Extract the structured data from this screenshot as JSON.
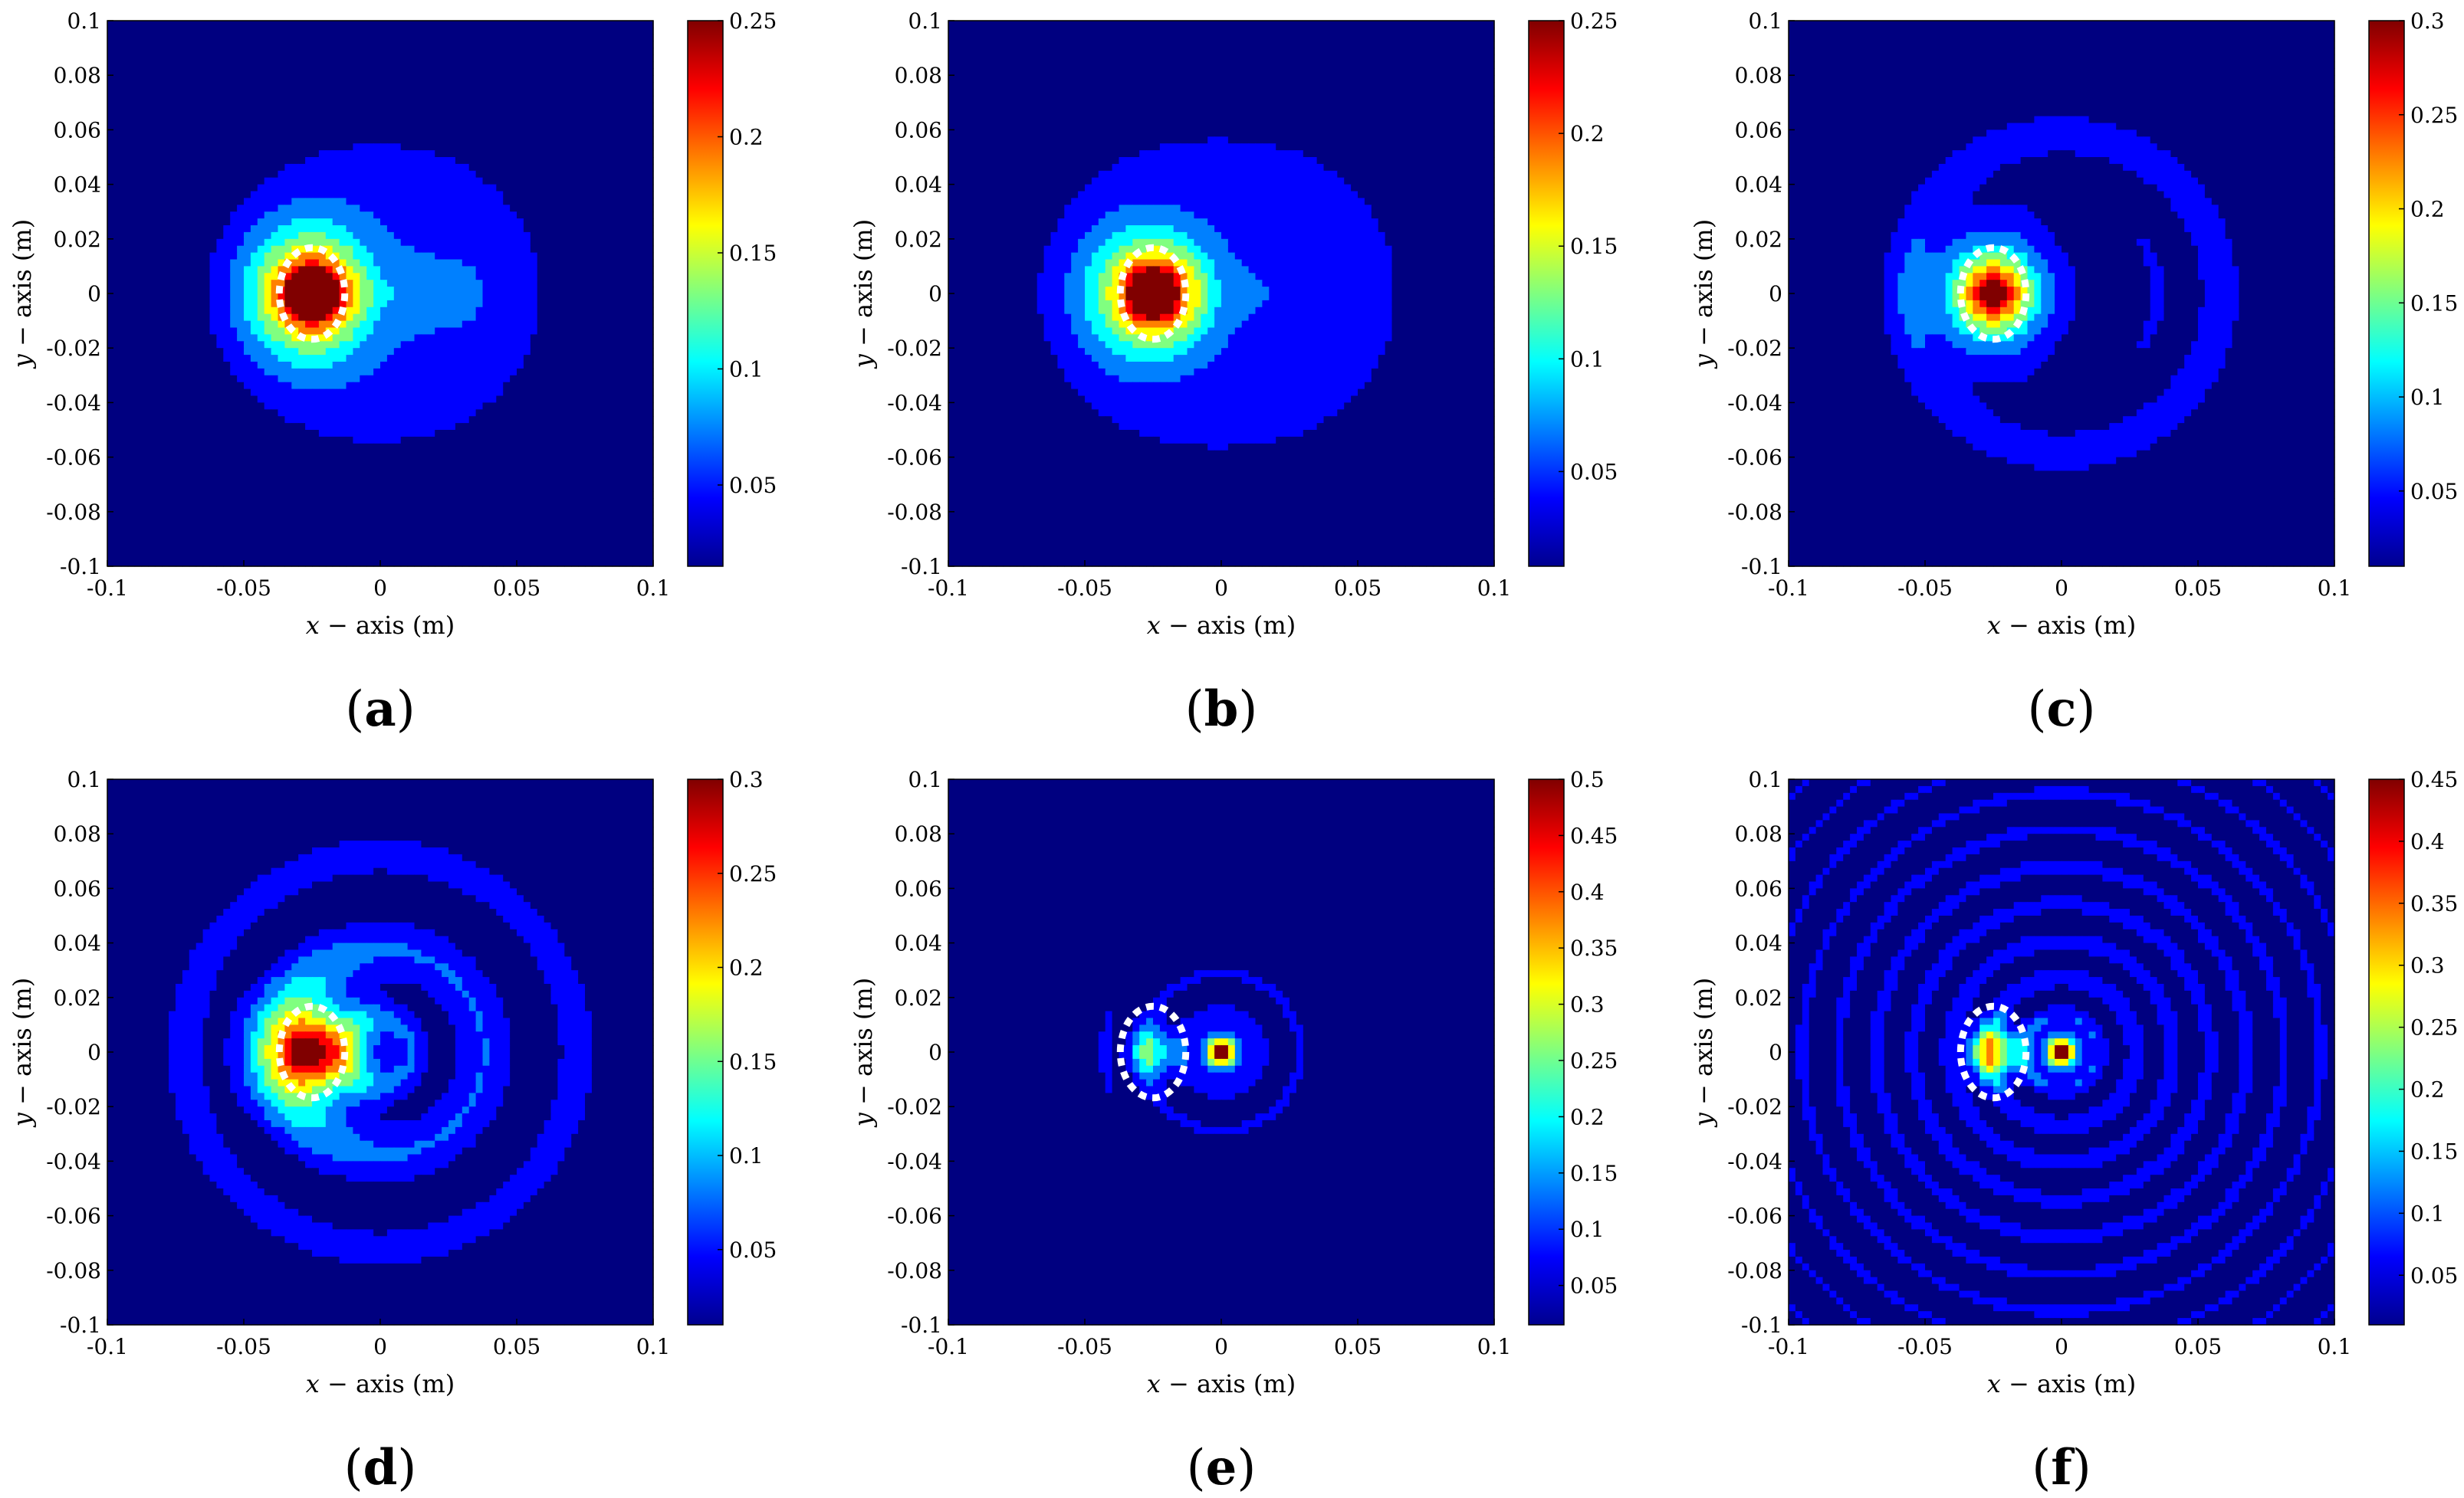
{
  "figure_colors": {
    "background": "#00008f",
    "low_ring": "#0040ff",
    "ring_outline": "#ffffff",
    "marker": "#ffffff"
  },
  "colormap": "jet",
  "chart_data": [
    {
      "id": "a",
      "type": "heatmap",
      "caption_letter": "a",
      "caption": "(a)",
      "xlabel_var": "x",
      "xlabel_rest": " − axis (m)",
      "ylabel_var": "y",
      "ylabel_rest": " − axis (m)",
      "xlim": [
        -0.1,
        0.1
      ],
      "ylim": [
        -0.1,
        0.1
      ],
      "xticks": [
        -0.1,
        -0.05,
        0,
        0.05,
        0.1
      ],
      "xtick_labels": [
        "-0.1",
        "-0.05",
        "0",
        "0.05",
        "0.1"
      ],
      "yticks": [
        0.1,
        0.08,
        0.06,
        0.04,
        0.02,
        0,
        -0.02,
        -0.04,
        -0.06,
        -0.08,
        -0.1
      ],
      "ytick_labels": [
        "0.1",
        "0.08",
        "0.06",
        "0.04",
        "0.02",
        "0",
        "-0.02",
        "-0.04",
        "-0.06",
        "-0.08",
        "-0.1"
      ],
      "clim": [
        0.015,
        0.25
      ],
      "cbar_ticks": [
        0.05,
        0.1,
        0.15,
        0.2,
        0.25
      ],
      "cbar_tick_labels": [
        "0.05",
        "0.1",
        "0.15",
        "0.2",
        "0.25"
      ],
      "source": [
        -0.025,
        0
      ],
      "source_radius": 0.012,
      "pattern": "plume-small"
    },
    {
      "id": "b",
      "type": "heatmap",
      "caption_letter": "b",
      "caption": "(b)",
      "xlabel_var": "x",
      "xlabel_rest": " − axis (m)",
      "ylabel_var": "y",
      "ylabel_rest": " − axis (m)",
      "xlim": [
        -0.1,
        0.1
      ],
      "ylim": [
        -0.1,
        0.1
      ],
      "xticks": [
        -0.1,
        -0.05,
        0,
        0.05,
        0.1
      ],
      "xtick_labels": [
        "-0.1",
        "-0.05",
        "0",
        "0.05",
        "0.1"
      ],
      "yticks": [
        0.1,
        0.08,
        0.06,
        0.04,
        0.02,
        0,
        -0.02,
        -0.04,
        -0.06,
        -0.08,
        -0.1
      ],
      "ytick_labels": [
        "0.1",
        "0.08",
        "0.06",
        "0.04",
        "0.02",
        "0",
        "-0.02",
        "-0.04",
        "-0.06",
        "-0.08",
        "-0.1"
      ],
      "clim": [
        0.008,
        0.25
      ],
      "cbar_ticks": [
        0.05,
        0.1,
        0.15,
        0.2,
        0.25
      ],
      "cbar_tick_labels": [
        "0.05",
        "0.1",
        "0.15",
        "0.2",
        "0.25"
      ],
      "source": [
        -0.025,
        0
      ],
      "source_radius": 0.012,
      "pattern": "plume-large"
    },
    {
      "id": "c",
      "type": "heatmap",
      "caption_letter": "c",
      "caption": "(c)",
      "xlabel_var": "x",
      "xlabel_rest": " − axis (m)",
      "ylabel_var": "y",
      "ylabel_rest": " − axis (m)",
      "xlim": [
        -0.1,
        0.1
      ],
      "ylim": [
        -0.1,
        0.1
      ],
      "xticks": [
        -0.1,
        -0.05,
        0,
        0.05,
        0.1
      ],
      "xtick_labels": [
        "-0.1",
        "-0.05",
        "0",
        "0.05",
        "0.1"
      ],
      "yticks": [
        0.1,
        0.08,
        0.06,
        0.04,
        0.02,
        0,
        -0.02,
        -0.04,
        -0.06,
        -0.08,
        -0.1
      ],
      "ytick_labels": [
        "0.1",
        "0.08",
        "0.06",
        "0.04",
        "0.02",
        "0",
        "-0.02",
        "-0.04",
        "-0.06",
        "-0.08",
        "-0.1"
      ],
      "clim": [
        0.01,
        0.3
      ],
      "cbar_ticks": [
        0.05,
        0.1,
        0.15,
        0.2,
        0.25,
        0.3
      ],
      "cbar_tick_labels": [
        "0.05",
        "0.1",
        "0.15",
        "0.2",
        "0.25",
        "0.3"
      ],
      "source": [
        -0.025,
        0
      ],
      "source_radius": 0.012,
      "pattern": "spiral-1"
    },
    {
      "id": "d",
      "type": "heatmap",
      "caption_letter": "d",
      "caption": "(d)",
      "xlabel_var": "x",
      "xlabel_rest": " − axis (m)",
      "ylabel_var": "y",
      "ylabel_rest": " − axis (m)",
      "xlim": [
        -0.1,
        0.1
      ],
      "ylim": [
        -0.1,
        0.1
      ],
      "xticks": [
        -0.1,
        -0.05,
        0,
        0.05,
        0.1
      ],
      "xtick_labels": [
        "-0.1",
        "-0.05",
        "0",
        "0.05",
        "0.1"
      ],
      "yticks": [
        0.1,
        0.08,
        0.06,
        0.04,
        0.02,
        0,
        -0.02,
        -0.04,
        -0.06,
        -0.08,
        -0.1
      ],
      "ytick_labels": [
        "0.1",
        "0.08",
        "0.06",
        "0.04",
        "0.02",
        "0",
        "-0.02",
        "-0.04",
        "-0.06",
        "-0.08",
        "-0.1"
      ],
      "clim": [
        0.01,
        0.3
      ],
      "cbar_ticks": [
        0.05,
        0.1,
        0.15,
        0.2,
        0.25,
        0.3
      ],
      "cbar_tick_labels": [
        "0.05",
        "0.1",
        "0.15",
        "0.2",
        "0.25",
        "0.3"
      ],
      "source": [
        -0.025,
        0
      ],
      "source_radius": 0.012,
      "pattern": "spiral-2"
    },
    {
      "id": "e",
      "type": "heatmap",
      "caption_letter": "e",
      "caption": "(e)",
      "xlabel_var": "x",
      "xlabel_rest": " − axis (m)",
      "ylabel_var": "y",
      "ylabel_rest": " − axis (m)",
      "xlim": [
        -0.1,
        0.1
      ],
      "ylim": [
        -0.1,
        0.1
      ],
      "xticks": [
        -0.1,
        -0.05,
        0,
        0.05,
        0.1
      ],
      "xtick_labels": [
        "-0.1",
        "-0.05",
        "0",
        "0.05",
        "0.1"
      ],
      "yticks": [
        0.1,
        0.08,
        0.06,
        0.04,
        0.02,
        0,
        -0.02,
        -0.04,
        -0.06,
        -0.08,
        -0.1
      ],
      "ytick_labels": [
        "0.1",
        "0.08",
        "0.06",
        "0.04",
        "0.02",
        "0",
        "-0.02",
        "-0.04",
        "-0.06",
        "-0.08",
        "-0.1"
      ],
      "clim": [
        0.015,
        0.5
      ],
      "cbar_ticks": [
        0.05,
        0.1,
        0.15,
        0.2,
        0.25,
        0.3,
        0.35,
        0.4,
        0.45,
        0.5
      ],
      "cbar_tick_labels": [
        "0.05",
        "0.1",
        "0.15",
        "0.2",
        "0.25",
        "0.3",
        "0.35",
        "0.4",
        "0.45",
        "0.5"
      ],
      "source": [
        -0.025,
        0
      ],
      "source_radius": 0.012,
      "pattern": "rings-1"
    },
    {
      "id": "f",
      "type": "heatmap",
      "caption_letter": "f",
      "caption": "(f)",
      "xlabel_var": "x",
      "xlabel_rest": " − axis (m)",
      "ylabel_var": "y",
      "ylabel_rest": " − axis (m)",
      "xlim": [
        -0.1,
        0.1
      ],
      "ylim": [
        -0.1,
        0.1
      ],
      "xticks": [
        -0.1,
        -0.05,
        0,
        0.05,
        0.1
      ],
      "xtick_labels": [
        "-0.1",
        "-0.05",
        "0",
        "0.05",
        "0.1"
      ],
      "yticks": [
        0.1,
        0.08,
        0.06,
        0.04,
        0.02,
        0,
        -0.02,
        -0.04,
        -0.06,
        -0.08,
        -0.1
      ],
      "ytick_labels": [
        "0.1",
        "0.08",
        "0.06",
        "0.04",
        "0.02",
        "0",
        "-0.02",
        "-0.04",
        "-0.06",
        "-0.08",
        "-0.1"
      ],
      "clim": [
        0.01,
        0.45
      ],
      "cbar_ticks": [
        0.05,
        0.1,
        0.15,
        0.2,
        0.25,
        0.3,
        0.35,
        0.4,
        0.45
      ],
      "cbar_tick_labels": [
        "0.05",
        "0.1",
        "0.15",
        "0.2",
        "0.25",
        "0.3",
        "0.35",
        "0.4",
        "0.45"
      ],
      "source": [
        -0.025,
        0
      ],
      "source_radius": 0.012,
      "pattern": "rings-2"
    }
  ]
}
